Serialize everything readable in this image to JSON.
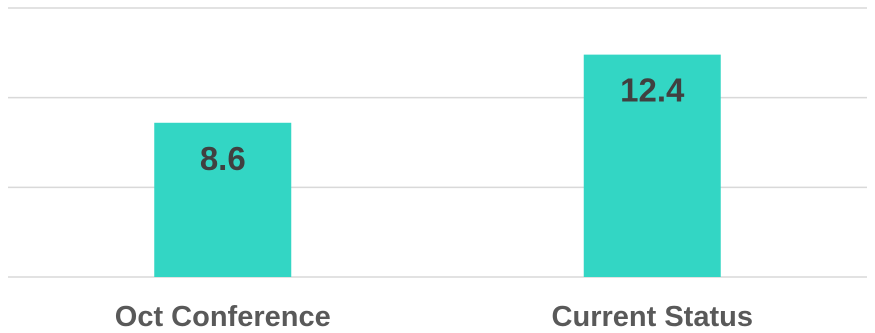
{
  "chart_data": {
    "type": "bar",
    "categories": [
      "Oct Conference",
      "Current Status"
    ],
    "values": [
      8.6,
      12.4
    ],
    "value_labels": [
      "8.6",
      "12.4"
    ],
    "ylim": [
      0,
      15
    ],
    "grid": true,
    "legend": "none",
    "colors": {
      "bar": "#33d6c4",
      "grid": "#d9d9d9",
      "value_text": "#404040",
      "category_text": "#595959"
    }
  }
}
